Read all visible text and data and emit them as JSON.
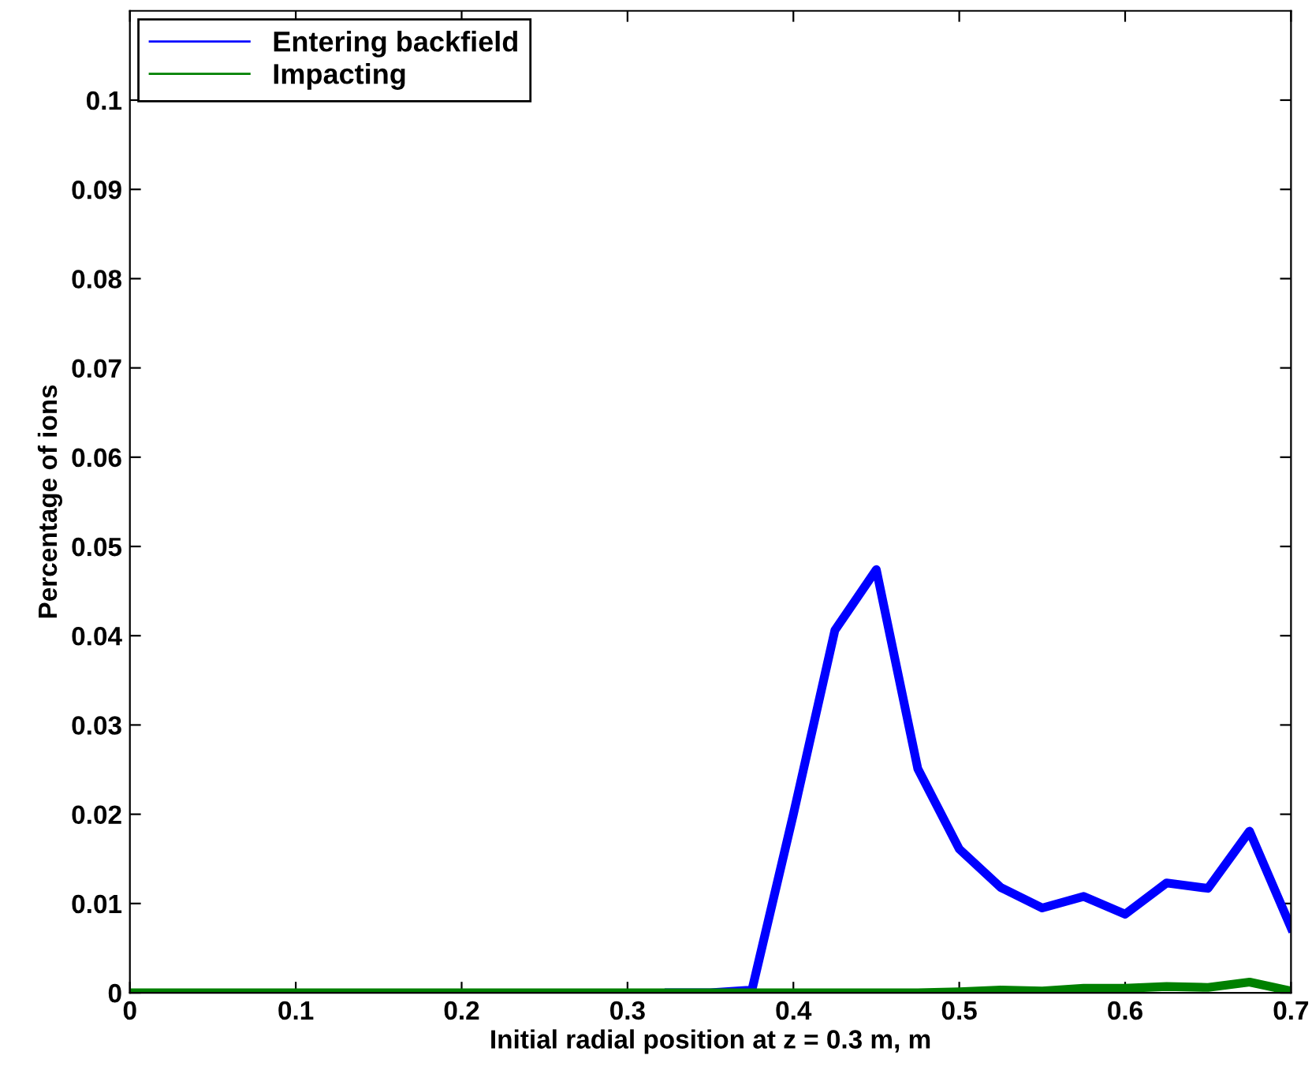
{
  "chart_data": {
    "type": "line",
    "xlabel": "Initial radial position at z = 0.3 m, m",
    "ylabel": "Percentage of ions",
    "x": [
      0,
      0.025,
      0.05,
      0.075,
      0.1,
      0.125,
      0.15,
      0.175,
      0.2,
      0.225,
      0.25,
      0.275,
      0.3,
      0.325,
      0.35,
      0.375,
      0.4,
      0.425,
      0.45,
      0.475,
      0.5,
      0.525,
      0.55,
      0.575,
      0.6,
      0.625,
      0.65,
      0.675,
      0.7
    ],
    "series": [
      {
        "name": "Entering backfield",
        "color": "#0000ff",
        "values": [
          null,
          null,
          null,
          null,
          null,
          null,
          null,
          null,
          null,
          null,
          null,
          null,
          null,
          0,
          0,
          0.0003,
          0.02,
          0.0406,
          0.0474,
          0.0251,
          0.0161,
          0.0118,
          0.0095,
          0.0108,
          0.0088,
          0.0123,
          0.0117,
          0.0181,
          0.0073
        ]
      },
      {
        "name": "Impacting",
        "color": "#008000",
        "values": [
          0,
          0,
          0,
          0,
          0,
          0,
          0,
          0,
          0,
          0,
          0,
          0,
          0,
          0,
          0,
          0,
          0,
          0,
          0,
          0,
          0.0001,
          0.0003,
          0.0002,
          0.0005,
          0.0005,
          0.0007,
          0.0006,
          0.0012,
          0.0002
        ]
      }
    ],
    "xlim": [
      0,
      0.7
    ],
    "ylim": [
      0,
      0.11
    ],
    "xticks": [
      0,
      0.1,
      0.2,
      0.3,
      0.4,
      0.5,
      0.6,
      0.7
    ],
    "yticks": [
      0,
      0.01,
      0.02,
      0.03,
      0.04,
      0.05,
      0.06,
      0.07,
      0.08,
      0.09,
      0.1
    ],
    "legend": "top left",
    "grid": false,
    "marker": "none",
    "line_style": "solid"
  }
}
